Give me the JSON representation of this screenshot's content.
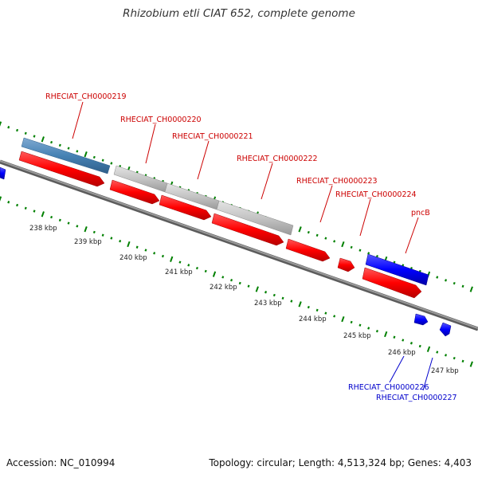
{
  "title": "Rhizobium etli CIAT 652, complete genome",
  "footer": {
    "accession": "Accession: NC_010994",
    "summary": "Topology: circular; Length: 4,513,324 bp; Genes: 4,403"
  },
  "colors": {
    "cds": "#ff0000",
    "forward_gene": "#4682b4",
    "gray_gene": "#c0c0c0",
    "blue_gene": "#0000ff",
    "tick": "#008000",
    "backbone": "#808080",
    "label_red": "#cc0000",
    "label_blue": "#0000cc"
  },
  "scale": {
    "unit": "kbp",
    "labels": [
      "238 kbp",
      "239 kbp",
      "240 kbp",
      "241 kbp",
      "242 kbp",
      "243 kbp",
      "244 kbp",
      "245 kbp",
      "246 kbp",
      "247 kbp"
    ]
  },
  "genes": [
    {
      "id": "g219",
      "label": "RHECIAT_CH0000219",
      "color": "label_red"
    },
    {
      "id": "g220",
      "label": "RHECIAT_CH0000220",
      "color": "label_red"
    },
    {
      "id": "g221",
      "label": "RHECIAT_CH0000221",
      "color": "label_red"
    },
    {
      "id": "g222",
      "label": "RHECIAT_CH0000222",
      "color": "label_red"
    },
    {
      "id": "g223",
      "label": "RHECIAT_CH0000223",
      "color": "label_red"
    },
    {
      "id": "g224",
      "label": "RHECIAT_CH0000224",
      "color": "label_red"
    },
    {
      "id": "pncB",
      "label": "pncB",
      "color": "label_red"
    },
    {
      "id": "g226",
      "label": "RHECIAT_CH0000226",
      "color": "label_blue"
    },
    {
      "id": "g227",
      "label": "RHECIAT_CH0000227",
      "color": "label_blue"
    }
  ]
}
